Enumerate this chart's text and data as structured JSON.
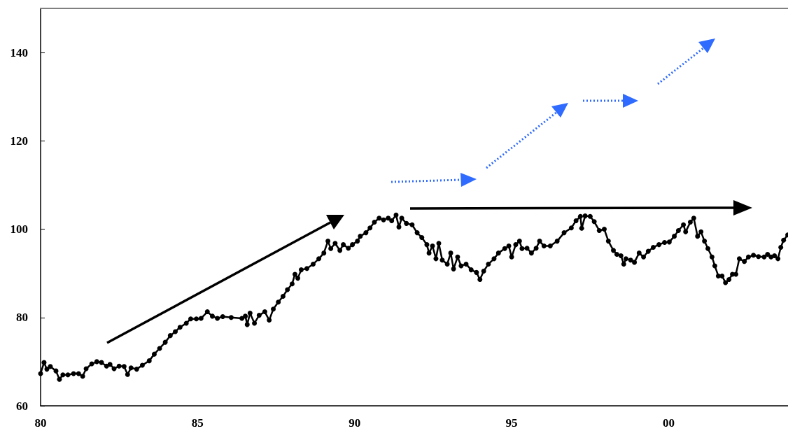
{
  "chart_data": {
    "type": "line",
    "marker": "circle",
    "line_style": "solid",
    "xlim": [
      1980,
      2003.8
    ],
    "xticks": [
      {
        "value": 1980,
        "label": "80"
      },
      {
        "value": 1985,
        "label": "85"
      },
      {
        "value": 1990,
        "label": "90"
      },
      {
        "value": 1995,
        "label": "95"
      },
      {
        "value": 2000,
        "label": "00"
      }
    ],
    "ylim": [
      60,
      150
    ],
    "yticks": [
      60,
      80,
      100,
      120,
      140
    ],
    "series": [
      {
        "color": "#000000",
        "x": [
          1980.0,
          1980.11,
          1980.2,
          1980.31,
          1980.49,
          1980.6,
          1980.71,
          1980.87,
          1981.05,
          1981.21,
          1981.34,
          1981.45,
          1981.63,
          1981.79,
          1981.94,
          1982.1,
          1982.21,
          1982.34,
          1982.5,
          1982.66,
          1982.77,
          1982.88,
          1983.06,
          1983.24,
          1983.46,
          1983.62,
          1983.79,
          1983.97,
          1984.13,
          1984.29,
          1984.44,
          1984.64,
          1984.78,
          1984.96,
          1985.11,
          1985.31,
          1985.47,
          1985.63,
          1985.8,
          1986.07,
          1986.41,
          1986.52,
          1986.58,
          1986.67,
          1986.81,
          1986.96,
          1987.14,
          1987.28,
          1987.41,
          1987.57,
          1987.72,
          1987.86,
          1988.01,
          1988.1,
          1988.19,
          1988.3,
          1988.48,
          1988.68,
          1988.86,
          1989.02,
          1989.15,
          1989.24,
          1989.38,
          1989.53,
          1989.64,
          1989.8,
          1989.93,
          1990.09,
          1990.18,
          1990.36,
          1990.49,
          1990.63,
          1990.78,
          1990.92,
          1991.07,
          1991.18,
          1991.32,
          1991.41,
          1991.5,
          1991.65,
          1991.83,
          1991.99,
          1992.14,
          1992.3,
          1992.37,
          1992.48,
          1992.59,
          1992.68,
          1992.79,
          1992.95,
          1993.06,
          1993.15,
          1993.28,
          1993.39,
          1993.55,
          1993.71,
          1993.88,
          1993.99,
          1994.11,
          1994.26,
          1994.44,
          1994.58,
          1994.78,
          1994.91,
          1995.0,
          1995.13,
          1995.25,
          1995.33,
          1995.49,
          1995.63,
          1995.78,
          1995.89,
          1996.03,
          1996.23,
          1996.45,
          1996.67,
          1996.9,
          1997.05,
          1997.19,
          1997.23,
          1997.34,
          1997.5,
          1997.63,
          1997.79,
          1997.95,
          1998.08,
          1998.24,
          1998.35,
          1998.48,
          1998.57,
          1998.64,
          1998.79,
          1998.91,
          1999.06,
          1999.2,
          1999.35,
          1999.51,
          1999.69,
          1999.87,
          2000.02,
          2000.18,
          2000.31,
          2000.47,
          2000.54,
          2000.69,
          2000.8,
          2000.92,
          2001.03,
          2001.14,
          2001.25,
          2001.38,
          2001.47,
          2001.58,
          2001.7,
          2001.81,
          2001.92,
          2002.03,
          2002.14,
          2002.25,
          2002.41,
          2002.54,
          2002.7,
          2002.86,
          2003.04,
          2003.15,
          2003.26,
          2003.37,
          2003.48,
          2003.57,
          2003.66,
          2003.79
        ],
        "values": [
          67.3,
          69.8,
          68.3,
          68.9,
          67.9,
          66.0,
          67.0,
          67.0,
          67.3,
          67.3,
          66.7,
          68.4,
          69.5,
          70.0,
          69.8,
          69.0,
          69.4,
          68.4,
          69.0,
          68.9,
          67.1,
          68.6,
          68.3,
          69.2,
          70.2,
          71.7,
          73.0,
          74.4,
          75.9,
          76.8,
          77.8,
          78.7,
          79.7,
          79.7,
          79.8,
          81.3,
          80.3,
          79.8,
          80.2,
          80.0,
          79.8,
          80.3,
          78.4,
          81.0,
          78.7,
          80.5,
          81.3,
          79.4,
          81.9,
          83.5,
          84.8,
          86.3,
          87.6,
          89.8,
          88.9,
          90.8,
          91.1,
          92.1,
          93.3,
          94.6,
          97.3,
          95.6,
          96.8,
          95.2,
          96.5,
          95.7,
          96.5,
          97.3,
          98.4,
          99.2,
          100.3,
          101.6,
          102.5,
          102.1,
          102.5,
          101.9,
          103.2,
          100.5,
          102.5,
          101.3,
          101.0,
          99.2,
          98.1,
          96.5,
          94.6,
          96.2,
          93.3,
          96.8,
          93.0,
          92.1,
          94.6,
          91.0,
          93.7,
          91.7,
          92.1,
          90.8,
          90.2,
          88.6,
          90.5,
          92.1,
          93.3,
          94.6,
          95.6,
          96.2,
          93.7,
          96.5,
          97.3,
          95.6,
          95.7,
          94.6,
          95.7,
          97.3,
          96.2,
          96.2,
          97.3,
          99.2,
          100.3,
          101.9,
          102.9,
          100.2,
          103.0,
          102.9,
          101.7,
          99.7,
          100.0,
          97.3,
          95.2,
          94.3,
          94.0,
          92.1,
          93.3,
          93.0,
          92.5,
          94.6,
          93.7,
          95.0,
          95.9,
          96.5,
          97.0,
          97.1,
          98.4,
          99.7,
          101.0,
          99.4,
          101.6,
          102.5,
          98.4,
          99.4,
          97.3,
          95.6,
          93.7,
          91.7,
          89.4,
          89.4,
          87.9,
          88.6,
          89.8,
          89.8,
          93.3,
          92.7,
          93.7,
          94.1,
          93.8,
          93.7,
          94.3,
          93.7,
          94.0,
          93.3,
          95.9,
          97.5,
          98.7
        ]
      }
    ]
  }
}
